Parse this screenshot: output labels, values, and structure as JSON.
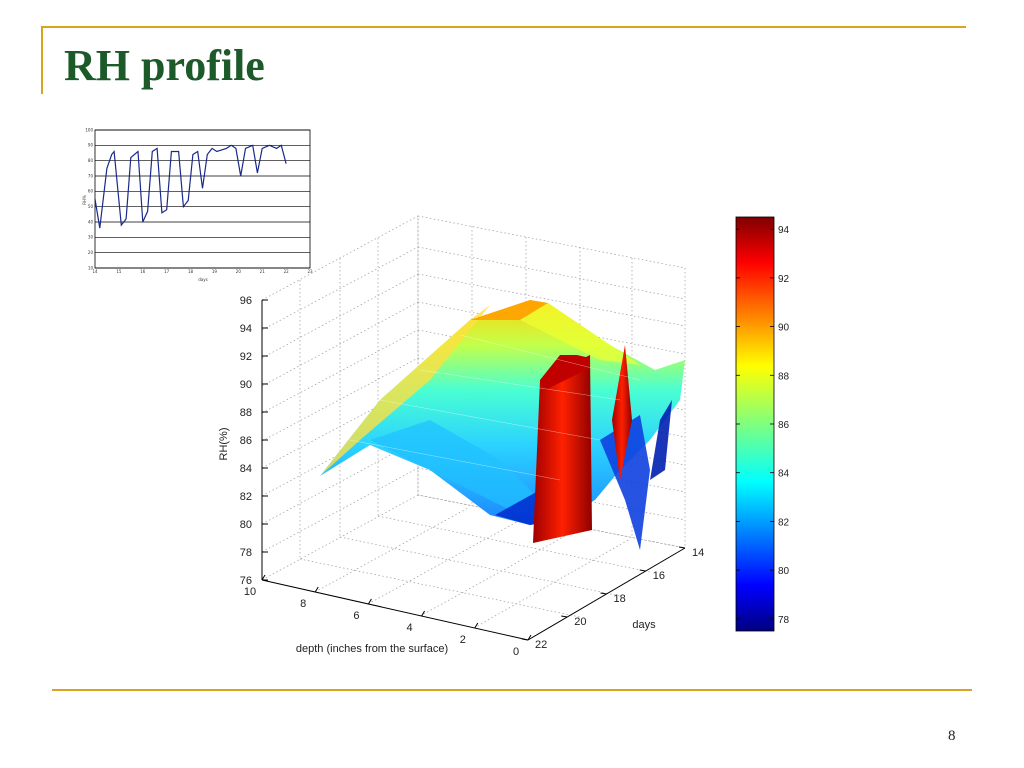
{
  "slide": {
    "title": "RH profile",
    "page_number": "8"
  },
  "colors": {
    "accent_rule": "#d9a520",
    "title": "#1c5a2a"
  },
  "chart_data": [
    {
      "type": "line",
      "xlabel": "days",
      "ylabel": "RH%",
      "x_ticks": [
        "14",
        "15",
        "16",
        "17",
        "18",
        "19",
        "20",
        "21",
        "22",
        "23"
      ],
      "y_ticks": [
        "10",
        "20",
        "30",
        "40",
        "50",
        "60",
        "70",
        "80",
        "90",
        "100"
      ],
      "ylim": [
        10,
        100
      ],
      "xlim": [
        14,
        23
      ],
      "grid": "horizontal",
      "series": [
        {
          "x": [
            14.0,
            14.2,
            14.5,
            14.7,
            14.8,
            15.1,
            15.3,
            15.5,
            15.8,
            16.0,
            16.2,
            16.4,
            16.6,
            16.8,
            17.0,
            17.2,
            17.5,
            17.7,
            17.9,
            18.1,
            18.3,
            18.5,
            18.7,
            18.9,
            19.1,
            19.3,
            19.5,
            19.7,
            19.9,
            20.1,
            20.3,
            20.6,
            20.8,
            21.0,
            21.3,
            21.6,
            21.8,
            22.0
          ],
          "y": [
            55,
            36,
            75,
            84,
            86,
            38,
            42,
            82,
            86,
            40,
            47,
            86,
            88,
            46,
            48,
            86,
            86,
            50,
            54,
            84,
            86,
            62,
            84,
            88,
            86,
            87,
            88,
            90,
            88,
            70,
            88,
            90,
            72,
            88,
            90,
            88,
            90,
            78
          ]
        }
      ]
    },
    {
      "type": "surface3d",
      "xlabel": "depth (inches from the surface)",
      "ylabel": "days",
      "zlabel": "RH(%)",
      "x_ticks": [
        "10",
        "8",
        "6",
        "4",
        "2",
        "0"
      ],
      "y_ticks": [
        "14",
        "16",
        "18",
        "20",
        "22"
      ],
      "z_ticks": [
        "76",
        "78",
        "80",
        "82",
        "84",
        "86",
        "88",
        "90",
        "92",
        "94",
        "96"
      ],
      "xlim": [
        0,
        10
      ],
      "ylim": [
        14,
        22
      ],
      "zlim": [
        76,
        96
      ],
      "colormap": "jet",
      "colorbar": {
        "ticks": [
          "78",
          "80",
          "82",
          "84",
          "86",
          "88",
          "90",
          "92",
          "94"
        ],
        "range": [
          77.5,
          94.5
        ]
      }
    }
  ]
}
